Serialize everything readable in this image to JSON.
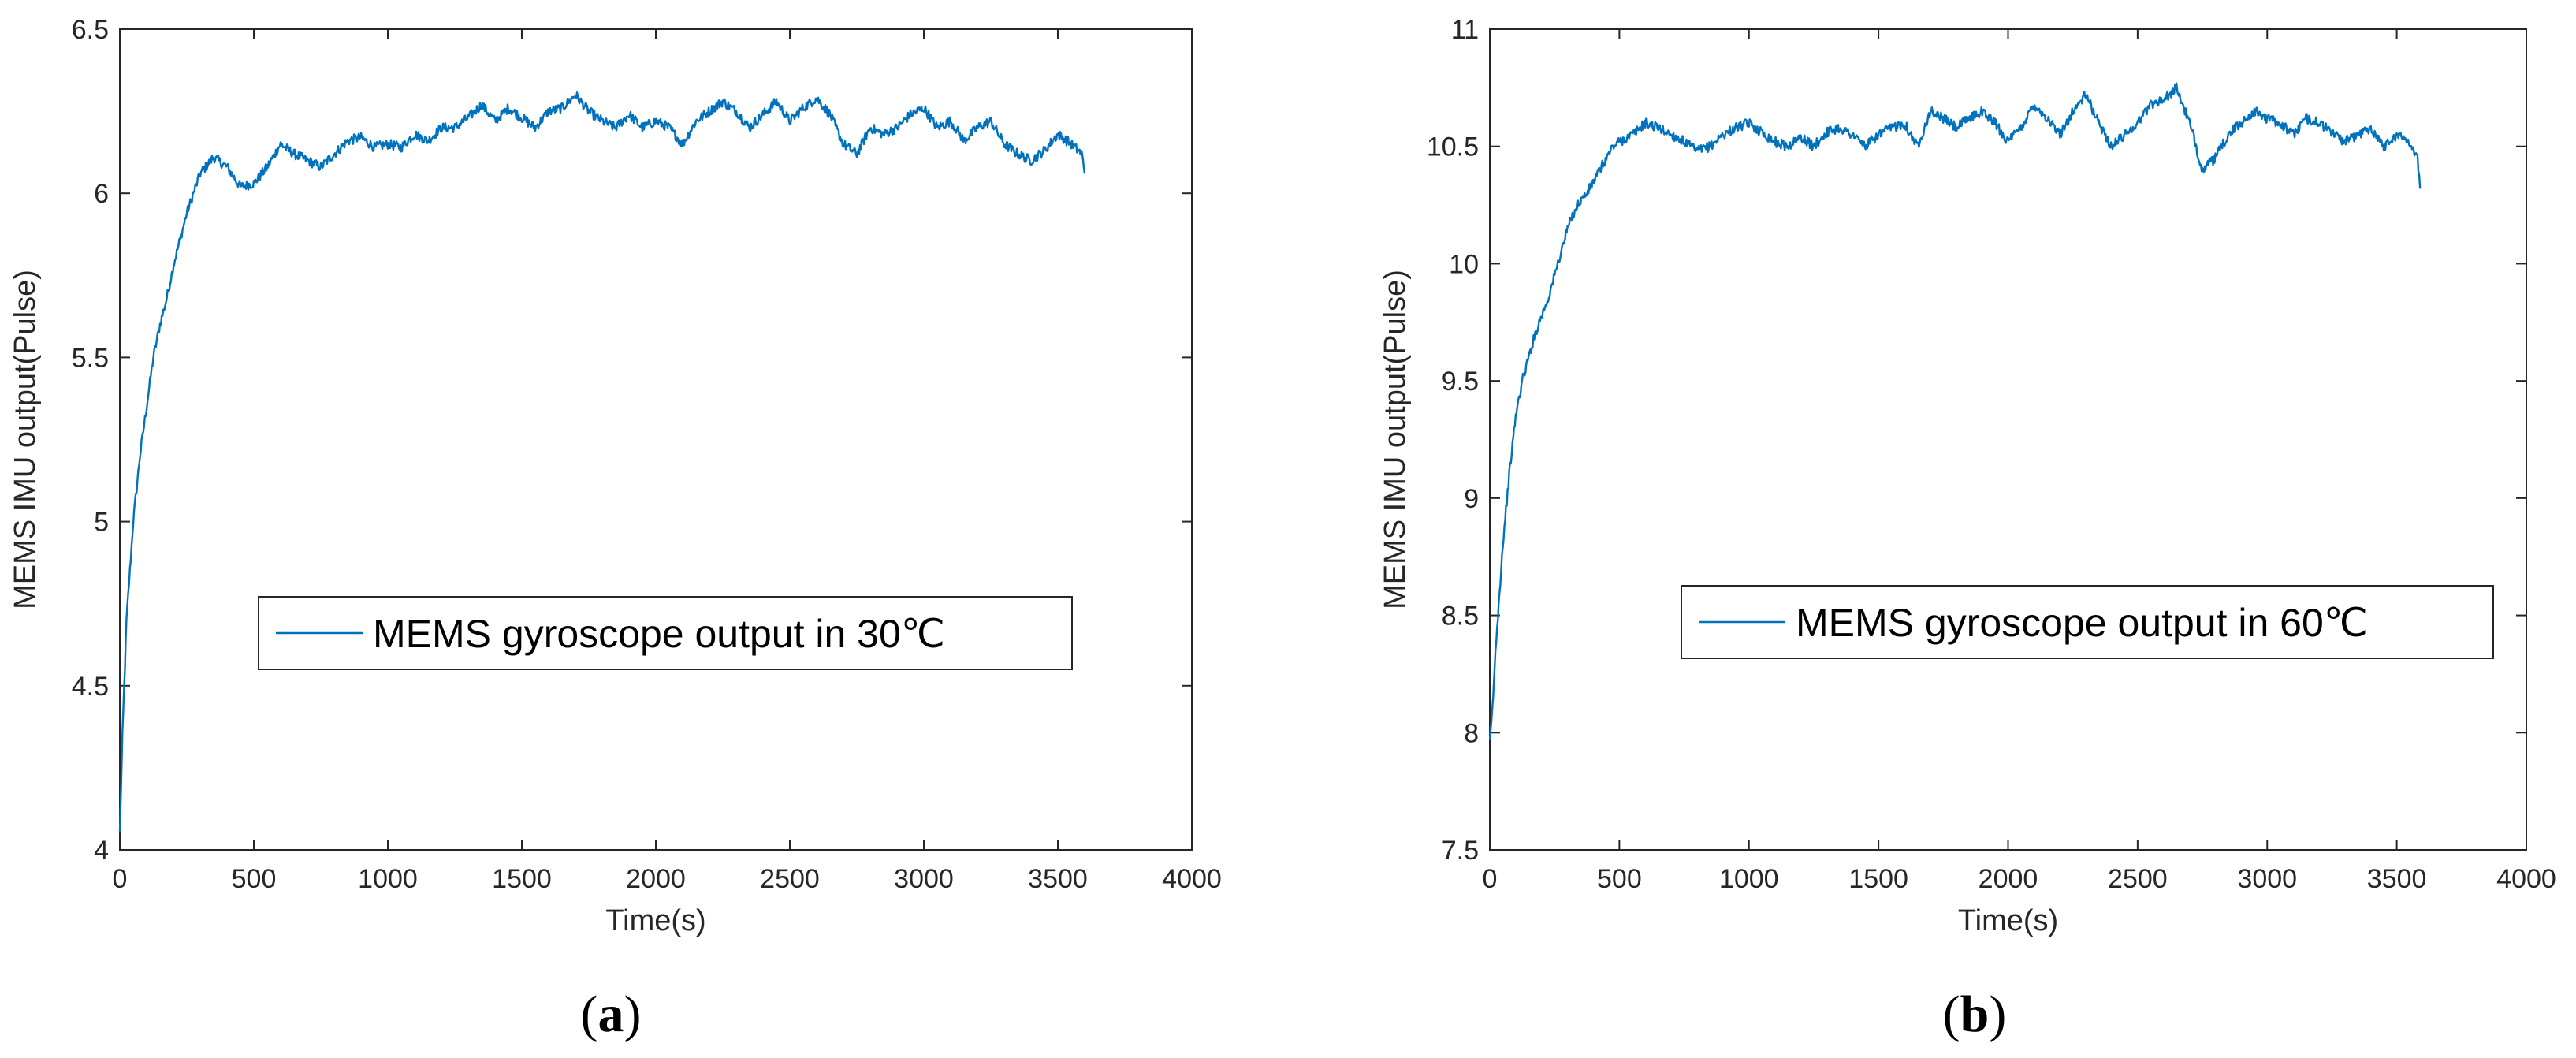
{
  "chart_data": [
    {
      "type": "line",
      "panel_label": "(a)",
      "panel_letter": "a",
      "xlabel": "Time(s)",
      "ylabel": "MEMS IMU output(Pulse)",
      "xlim": [
        0,
        4000
      ],
      "ylim": [
        4,
        6.5
      ],
      "xticks": [
        0,
        500,
        1000,
        1500,
        2000,
        2500,
        3000,
        3500,
        4000
      ],
      "yticks": [
        4,
        4.5,
        5,
        5.5,
        6,
        6.5
      ],
      "ytick_labels": [
        "4",
        "4.5",
        "5",
        "5.5",
        "6",
        "6.5"
      ],
      "grid": false,
      "legend_position": "center-right",
      "line_color": "#0072BD",
      "series": [
        {
          "name": "MEMS gyroscope output in 30℃",
          "x": [
            0,
            10,
            25,
            50,
            75,
            100,
            125,
            150,
            175,
            200,
            225,
            250,
            275,
            300,
            350,
            400,
            450,
            500,
            550,
            600,
            650,
            700,
            750,
            800,
            850,
            900,
            950,
            1000,
            1050,
            1100,
            1150,
            1200,
            1250,
            1300,
            1350,
            1400,
            1450,
            1500,
            1550,
            1600,
            1650,
            1700,
            1750,
            1800,
            1850,
            1900,
            1950,
            2000,
            2050,
            2100,
            2150,
            2200,
            2250,
            2300,
            2350,
            2400,
            2450,
            2500,
            2550,
            2600,
            2650,
            2700,
            2750,
            2800,
            2850,
            2900,
            2950,
            3000,
            3050,
            3100,
            3150,
            3200,
            3250,
            3300,
            3350,
            3400,
            3450,
            3500,
            3550,
            3590,
            3600
          ],
          "y": [
            4.05,
            4.35,
            4.7,
            5.0,
            5.2,
            5.35,
            5.5,
            5.6,
            5.68,
            5.78,
            5.86,
            5.94,
            6.0,
            6.06,
            6.11,
            6.08,
            6.02,
            6.03,
            6.08,
            6.15,
            6.12,
            6.1,
            6.08,
            6.12,
            6.16,
            6.17,
            6.14,
            6.15,
            6.14,
            6.18,
            6.16,
            6.2,
            6.2,
            6.23,
            6.27,
            6.22,
            6.26,
            6.23,
            6.2,
            6.25,
            6.26,
            6.3,
            6.25,
            6.22,
            6.2,
            6.24,
            6.2,
            6.22,
            6.2,
            6.15,
            6.22,
            6.25,
            6.28,
            6.25,
            6.2,
            6.24,
            6.28,
            6.22,
            6.26,
            6.29,
            6.24,
            6.15,
            6.12,
            6.2,
            6.18,
            6.2,
            6.24,
            6.26,
            6.2,
            6.22,
            6.16,
            6.2,
            6.22,
            6.15,
            6.12,
            6.1,
            6.13,
            6.18,
            6.15,
            6.12,
            6.06
          ]
        }
      ]
    },
    {
      "type": "line",
      "panel_label": "(b)",
      "panel_letter": "b",
      "xlabel": "Time(s)",
      "ylabel": "MEMS IMU output(Pulse)",
      "xlim": [
        0,
        4000
      ],
      "ylim": [
        7.5,
        11
      ],
      "xticks": [
        0,
        500,
        1000,
        1500,
        2000,
        2500,
        3000,
        3500,
        4000
      ],
      "yticks": [
        7.5,
        8,
        8.5,
        9,
        9.5,
        10,
        10.5,
        11
      ],
      "ytick_labels": [
        "7.5",
        "8",
        "8.5",
        "9",
        "9.5",
        "10",
        "10.5",
        "11"
      ],
      "grid": false,
      "legend_position": "center-right",
      "line_color": "#0072BD",
      "series": [
        {
          "name": "MEMS gyroscope output in 60℃",
          "x": [
            0,
            10,
            25,
            50,
            75,
            100,
            125,
            150,
            175,
            200,
            225,
            250,
            275,
            300,
            325,
            350,
            375,
            400,
            425,
            450,
            475,
            500,
            550,
            600,
            650,
            700,
            750,
            800,
            850,
            900,
            950,
            1000,
            1050,
            1100,
            1150,
            1200,
            1250,
            1300,
            1350,
            1400,
            1450,
            1500,
            1550,
            1600,
            1650,
            1700,
            1750,
            1800,
            1850,
            1900,
            1950,
            2000,
            2050,
            2100,
            2150,
            2200,
            2250,
            2300,
            2350,
            2400,
            2450,
            2500,
            2550,
            2600,
            2650,
            2700,
            2750,
            2800,
            2850,
            2900,
            2950,
            3000,
            3050,
            3100,
            3150,
            3200,
            3250,
            3300,
            3350,
            3400,
            3450,
            3500,
            3550,
            3580,
            3590
          ],
          "y": [
            7.95,
            8.1,
            8.4,
            8.8,
            9.1,
            9.35,
            9.5,
            9.6,
            9.7,
            9.78,
            9.85,
            9.95,
            10.05,
            10.15,
            10.22,
            10.27,
            10.3,
            10.35,
            10.4,
            10.45,
            10.5,
            10.52,
            10.55,
            10.6,
            10.58,
            10.55,
            10.52,
            10.48,
            10.5,
            10.55,
            10.58,
            10.6,
            10.56,
            10.52,
            10.5,
            10.54,
            10.5,
            10.56,
            10.58,
            10.55,
            10.5,
            10.55,
            10.58,
            10.6,
            10.5,
            10.65,
            10.62,
            10.58,
            10.62,
            10.65,
            10.6,
            10.52,
            10.58,
            10.68,
            10.62,
            10.55,
            10.65,
            10.72,
            10.6,
            10.5,
            10.55,
            10.6,
            10.68,
            10.7,
            10.75,
            10.6,
            10.4,
            10.45,
            10.55,
            10.6,
            10.65,
            10.62,
            10.6,
            10.55,
            10.62,
            10.6,
            10.56,
            10.52,
            10.55,
            10.58,
            10.5,
            10.55,
            10.52,
            10.45,
            10.32
          ]
        }
      ]
    }
  ]
}
